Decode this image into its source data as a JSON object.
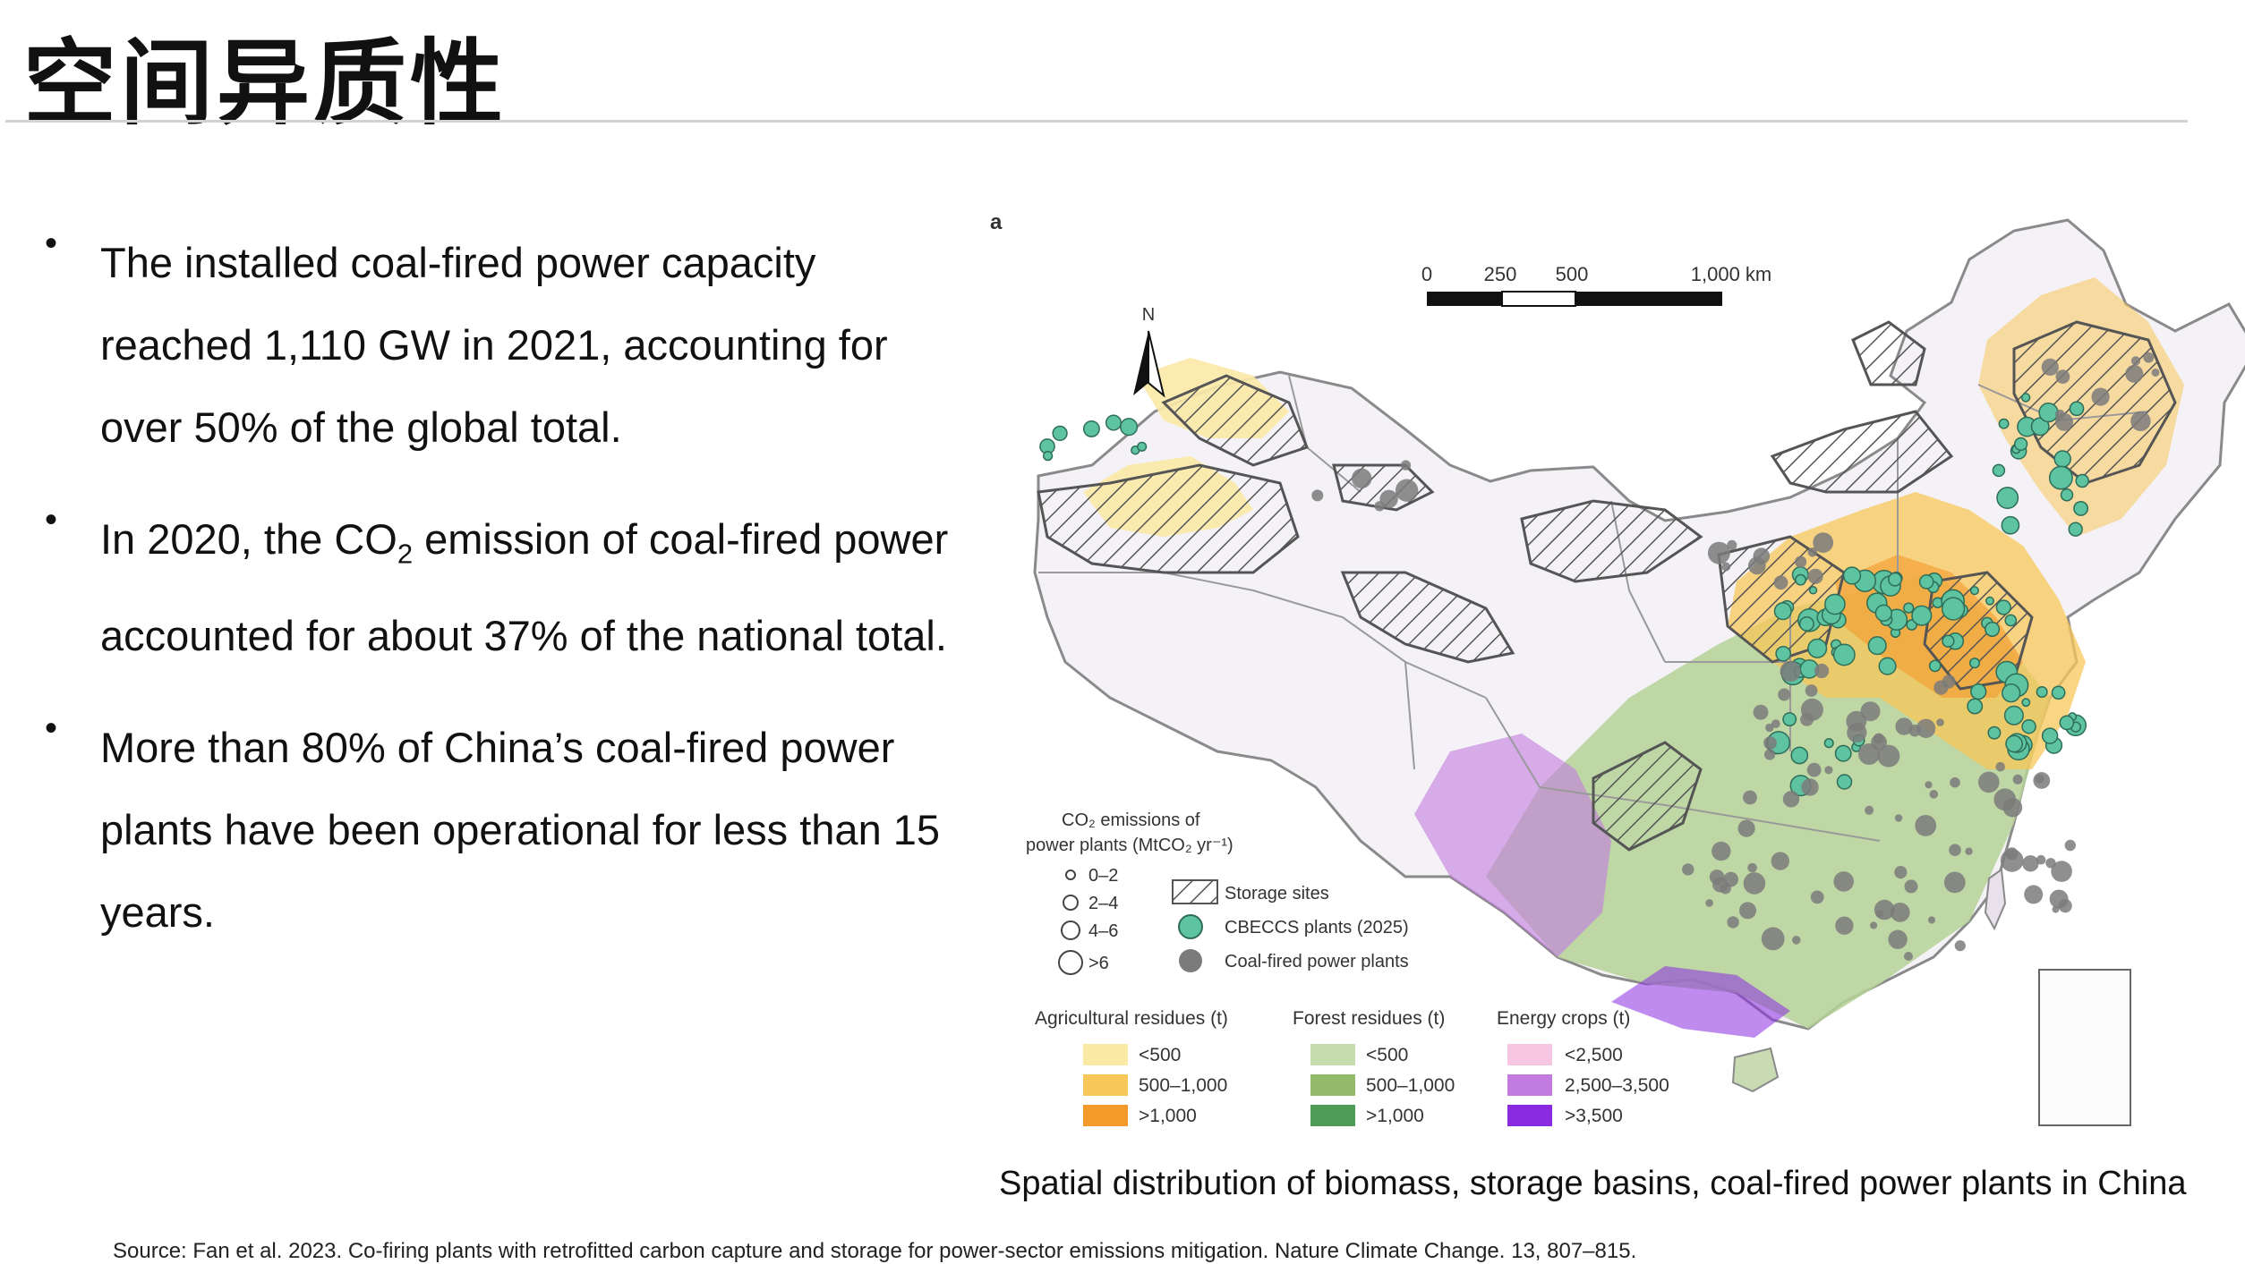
{
  "slide": {
    "title": "空间异质性"
  },
  "bullets": [
    {
      "text": "The installed coal-fired power capacity reached 1,110 GW in 2021, accounting for over 50% of the global total."
    },
    {
      "pre": "In 2020, the CO",
      "sub": "2",
      "post": " emission of coal-fired power accounted for about 37% of the national total."
    },
    {
      "text": "More than 80% of China’s coal-fired power plants have been operational for less than 15 years."
    }
  ],
  "figure": {
    "panel_label": "a",
    "scale_bar": {
      "ticks": [
        "0",
        "250",
        "500",
        "1,000 km"
      ]
    },
    "north_label": "N",
    "legend": {
      "emissions_title_1": "CO₂ emissions of",
      "emissions_title_2": "power plants (MtCO₂ yr⁻¹)",
      "emission_classes": [
        "0–2",
        "2–4",
        "4–6",
        ">6"
      ],
      "storage_label": "Storage sites",
      "cbeccs_label": "CBECCS plants (2025)",
      "coal_label": "Coal-fired power plants",
      "agricultural": {
        "title": "Agricultural residues (t)",
        "items": [
          "<500",
          "500–1,000",
          ">1,000"
        ],
        "colors": [
          "#fbe9a6",
          "#f8c75a",
          "#f39a2b"
        ]
      },
      "forest": {
        "title": "Forest residues (t)",
        "items": [
          "<500",
          "500–1,000",
          ">1,000"
        ],
        "colors": [
          "#c6dcae",
          "#93bb6b",
          "#4e9a57"
        ]
      },
      "energy": {
        "title": "Energy crops (t)",
        "items": [
          "<2,500",
          "2,500–3,500",
          ">3,500"
        ],
        "colors": [
          "#f7c6e3",
          "#c27ce0",
          "#8a2be2"
        ]
      }
    },
    "colors": {
      "cbeccs": "#5ec3a0",
      "coal": "#7b7b7b"
    }
  },
  "caption": "Spatial distribution of biomass, storage basins, coal-fired power plants in China",
  "source": "Source: Fan et al. 2023. Co-firing plants with retrofitted carbon capture and storage for power-sector emissions mitigation. Nature Climate Change. 13, 807–815."
}
